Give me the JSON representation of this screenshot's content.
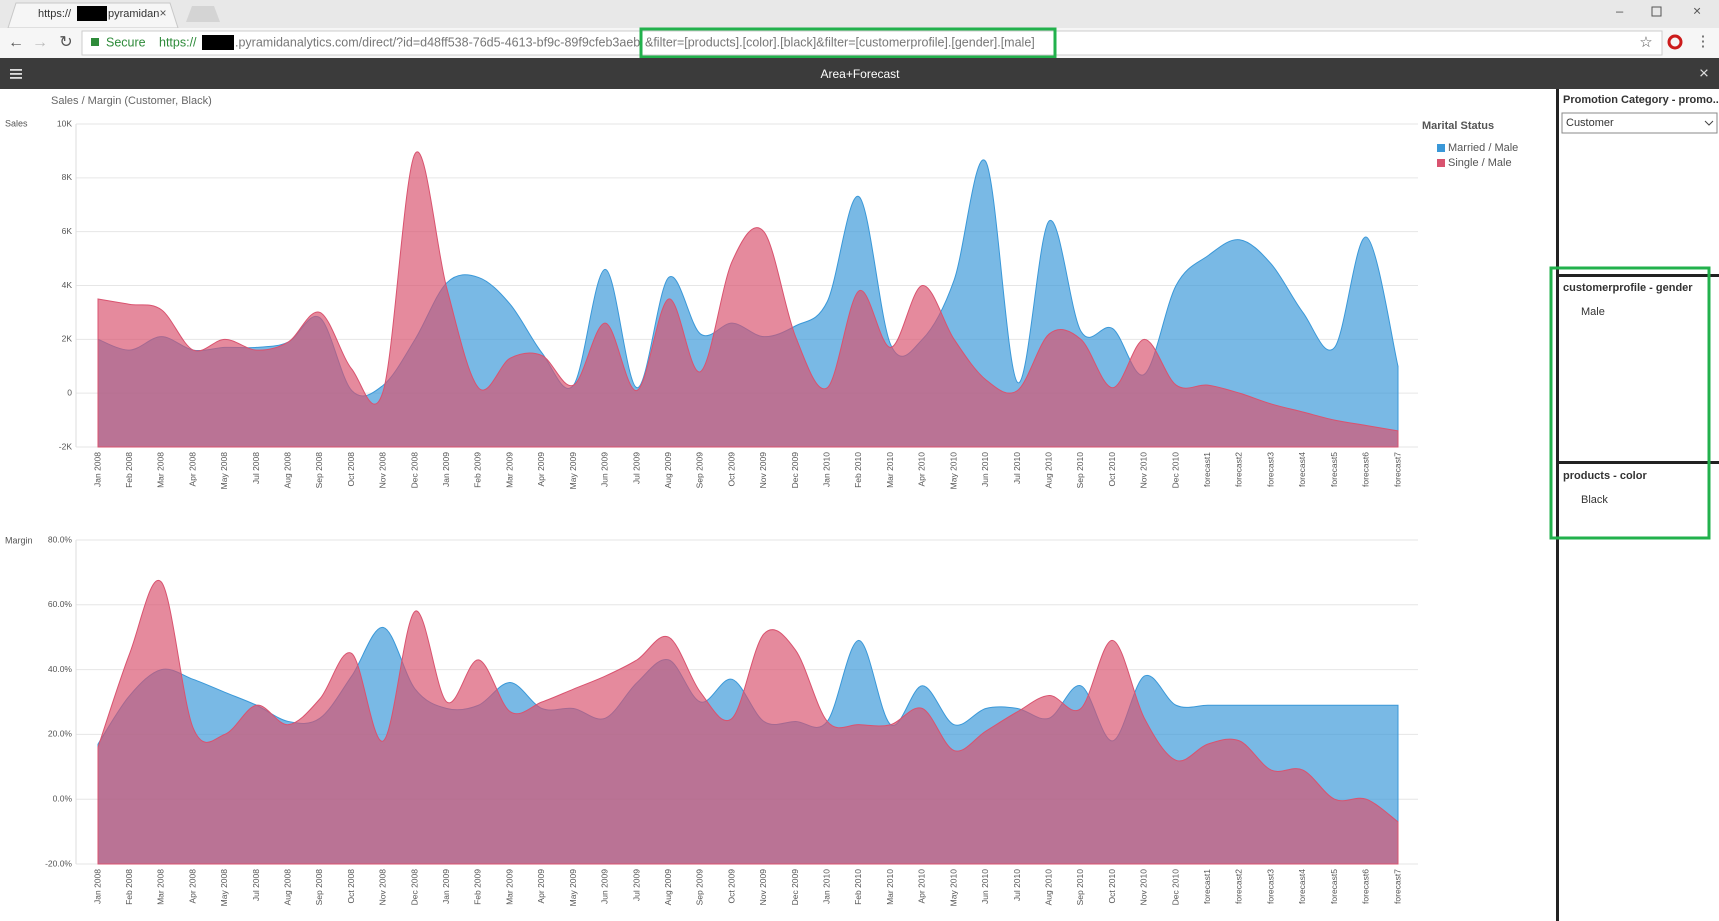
{
  "browser": {
    "tab_title": "https://",
    "tab_title_end": "pyramidan",
    "secure": "Secure",
    "url_scheme": "https://",
    "url_host": ".pyramidanalytics.com/direct/?id=d48ff538-76d5-4613-bf9c-89f9cfeb3aeb",
    "url_filter": "&filter=[products].[color].[black]&filter=[customerprofile].[gender].[male]"
  },
  "header": {
    "title": "Area+Forecast"
  },
  "panel": {
    "promotion_title": "Promotion Category - promo...",
    "promotion_value": "Customer",
    "gender_title": "customerprofile - gender",
    "gender_value": "Male",
    "color_title": "products - color",
    "color_value": "Black"
  },
  "chart_data": [
    {
      "type": "area",
      "title": "Sales / Margin (Customer, Black)",
      "y_label": "Sales",
      "legend_title": "Marital Status",
      "categories": [
        "Jan 2008",
        "Feb 2008",
        "Mar 2008",
        "Apr 2008",
        "May 2008",
        "Jul 2008",
        "Aug 2008",
        "Sep 2008",
        "Oct 2008",
        "Nov 2008",
        "Dec 2008",
        "Jan 2009",
        "Feb 2009",
        "Mar 2009",
        "Apr 2009",
        "May 2009",
        "Jun 2009",
        "Jul 2009",
        "Aug 2009",
        "Sep 2009",
        "Oct 2009",
        "Nov 2009",
        "Dec 2009",
        "Jan 2010",
        "Feb 2010",
        "Mar 2010",
        "Apr 2010",
        "May 2010",
        "Jun 2010",
        "Jul 2010",
        "Aug 2010",
        "Sep 2010",
        "Oct 2010",
        "Nov 2010",
        "Dec 2010",
        "forecast1",
        "forecast2",
        "forecast3",
        "forecast4",
        "forecast5",
        "forecast6",
        "forecast7"
      ],
      "series": [
        {
          "name": "Married / Male",
          "color": "#3a98d8",
          "values": [
            2000,
            1600,
            2100,
            1600,
            1700,
            1700,
            1900,
            2800,
            100,
            300,
            2000,
            4100,
            4300,
            3300,
            1500,
            300,
            4600,
            200,
            4300,
            2200,
            2600,
            2100,
            2500,
            3400,
            7300,
            1800,
            2000,
            4200,
            8600,
            400,
            6400,
            2300,
            2400,
            700,
            4000,
            5100,
            5700,
            4800,
            3000,
            1700,
            5800,
            1000
          ]
        },
        {
          "name": "Single / Male",
          "color": "#d9536f",
          "values": [
            3500,
            3300,
            3100,
            1600,
            2000,
            1600,
            1900,
            3000,
            900,
            100,
            8900,
            3900,
            200,
            1300,
            1400,
            300,
            2600,
            100,
            3500,
            800,
            4900,
            6000,
            2100,
            200,
            3800,
            1700,
            4000,
            2000,
            500,
            100,
            2200,
            2000,
            200,
            2000,
            300,
            300,
            0,
            -400,
            -700,
            -1000,
            -1200,
            -1400
          ]
        }
      ],
      "ylim": [
        -2000,
        10000
      ],
      "yticks": [
        {
          "value": -2000,
          "label": "-2K"
        },
        0,
        {
          "value": 2000,
          "label": "2K"
        },
        {
          "value": 4000,
          "label": "4K"
        },
        {
          "value": 6000,
          "label": "6K"
        },
        {
          "value": 8000,
          "label": "8K"
        },
        {
          "value": 10000,
          "label": "10K"
        }
      ],
      "grid": true
    },
    {
      "type": "area",
      "y_label": "Margin",
      "categories": [
        "Jan 2008",
        "Feb 2008",
        "Mar 2008",
        "Apr 2008",
        "May 2008",
        "Jul 2008",
        "Aug 2008",
        "Sep 2008",
        "Oct 2008",
        "Nov 2008",
        "Dec 2008",
        "Jan 2009",
        "Feb 2009",
        "Mar 2009",
        "Apr 2009",
        "May 2009",
        "Jun 2009",
        "Jul 2009",
        "Aug 2009",
        "Sep 2009",
        "Oct 2009",
        "Nov 2009",
        "Dec 2009",
        "Jan 2010",
        "Feb 2010",
        "Mar 2010",
        "Apr 2010",
        "May 2010",
        "Jun 2010",
        "Jul 2010",
        "Aug 2010",
        "Sep 2010",
        "Oct 2010",
        "Nov 2010",
        "Dec 2010",
        "forecast1",
        "forecast2",
        "forecast3",
        "forecast4",
        "forecast5",
        "forecast6",
        "forecast7"
      ],
      "series": [
        {
          "color": "#3a98d8",
          "values": [
            17,
            32,
            40,
            37,
            33,
            29,
            24,
            25,
            38,
            53,
            34,
            28,
            29,
            36,
            28,
            28,
            25,
            36,
            43,
            30,
            37,
            24,
            24,
            24,
            49,
            23,
            35,
            23,
            28,
            28,
            25,
            35,
            18,
            38,
            29,
            29,
            29,
            29,
            29,
            29,
            29,
            29
          ]
        },
        {
          "color": "#d9536f",
          "values": [
            16,
            45,
            67,
            22,
            20,
            29,
            23,
            31,
            45,
            18,
            58,
            30,
            43,
            27,
            30,
            34,
            38,
            43,
            50,
            33,
            25,
            51,
            46,
            24,
            23,
            23,
            28,
            15,
            21,
            27,
            32,
            28,
            49,
            25,
            12,
            17,
            18,
            9,
            9,
            0,
            0,
            -7
          ]
        }
      ],
      "ylim": [
        -20,
        80
      ],
      "yticks": [
        {
          "value": -20,
          "label": "-20.0%"
        },
        {
          "value": 0,
          "label": "0.0%"
        },
        {
          "value": 20,
          "label": "20.0%"
        },
        {
          "value": 40,
          "label": "40.0%"
        },
        {
          "value": 60,
          "label": "60.0%"
        },
        {
          "value": 80,
          "label": "80.0%"
        }
      ],
      "grid": true
    }
  ]
}
